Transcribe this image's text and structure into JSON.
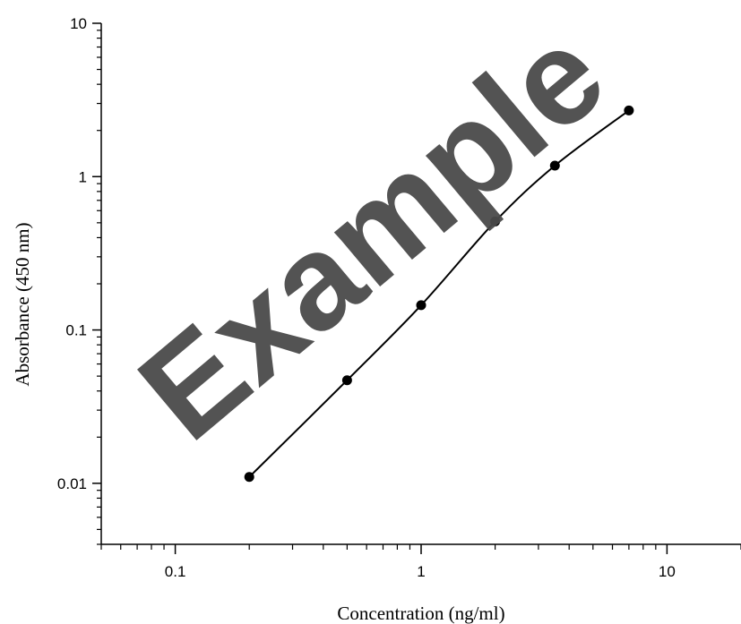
{
  "watermark": "Example",
  "chart_data": {
    "type": "line",
    "xlabel": "Concentration (ng/ml)",
    "ylabel": "Absorbance (450 nm)",
    "x_scale": "log",
    "y_scale": "log",
    "xlim": [
      0.05,
      20
    ],
    "ylim": [
      0.004,
      10
    ],
    "x_ticks": [
      {
        "value": 0.1,
        "label": "0.1"
      },
      {
        "value": 1,
        "label": "1"
      },
      {
        "value": 10,
        "label": "10"
      }
    ],
    "y_ticks": [
      {
        "value": 0.01,
        "label": "0.01"
      },
      {
        "value": 0.1,
        "label": "0.1"
      },
      {
        "value": 1,
        "label": "1"
      },
      {
        "value": 10,
        "label": "10"
      }
    ],
    "grid": false,
    "series": [
      {
        "x": [
          0.2,
          0.5,
          1,
          2,
          3.5,
          7
        ],
        "y": [
          0.011,
          0.047,
          0.145,
          0.51,
          1.18,
          2.7
        ],
        "color": "#000000",
        "marker": "filled-circle"
      }
    ]
  }
}
